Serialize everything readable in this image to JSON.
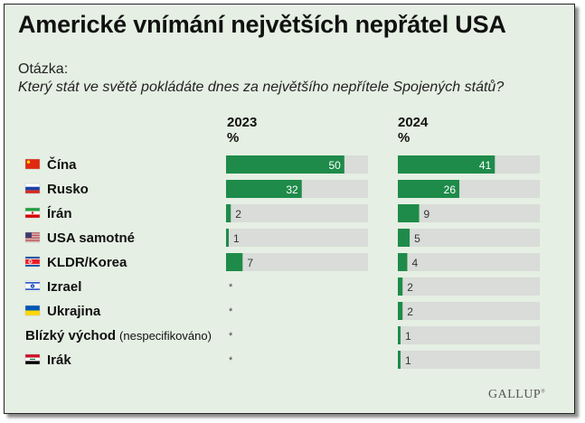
{
  "title": "Americké vnímání největších nepřátel USA",
  "question_label": "Otázka:",
  "question_text": "Který stát ve světě pokládáte dnes za největšího nepřítele Spojených států?",
  "footer_logo": "GALLUP",
  "colors": {
    "bar": "#1e8b4a",
    "track": "#d9dcd8",
    "panel": "#e5efe3"
  },
  "chart_data": {
    "type": "bar",
    "orientation": "horizontal",
    "unit": "%",
    "xlim": [
      0,
      60
    ],
    "columns": [
      {
        "year": "2023",
        "unit_label": "%"
      },
      {
        "year": "2024",
        "unit_label": "%"
      }
    ],
    "categories": [
      {
        "label": "Čína",
        "flag": "china-flag-icon"
      },
      {
        "label": "Rusko",
        "flag": "russia-flag-icon"
      },
      {
        "label": "Írán",
        "flag": "iran-flag-icon"
      },
      {
        "label": "USA samotné",
        "flag": "usa-flag-icon"
      },
      {
        "label": "KLDR/Korea",
        "flag": "north-korea-flag-icon"
      },
      {
        "label": "Izrael",
        "flag": "israel-flag-icon"
      },
      {
        "label": "Ukrajina",
        "flag": "ukraine-flag-icon"
      },
      {
        "label": "Blízký východ",
        "note": "(nespecifikováno)"
      },
      {
        "label": "Irák",
        "flag": "iraq-flag-icon"
      }
    ],
    "series": [
      {
        "name": "2023",
        "values": [
          50,
          32,
          2,
          1,
          7,
          null,
          null,
          null,
          null
        ],
        "labels": [
          "50",
          "32",
          "2",
          "1",
          "7",
          "*",
          "*",
          "*",
          "*"
        ]
      },
      {
        "name": "2024",
        "values": [
          41,
          26,
          9,
          5,
          4,
          2,
          2,
          1,
          1
        ],
        "labels": [
          "41",
          "26",
          "9",
          "5",
          "4",
          "2",
          "2",
          "1",
          "1"
        ]
      }
    ]
  }
}
